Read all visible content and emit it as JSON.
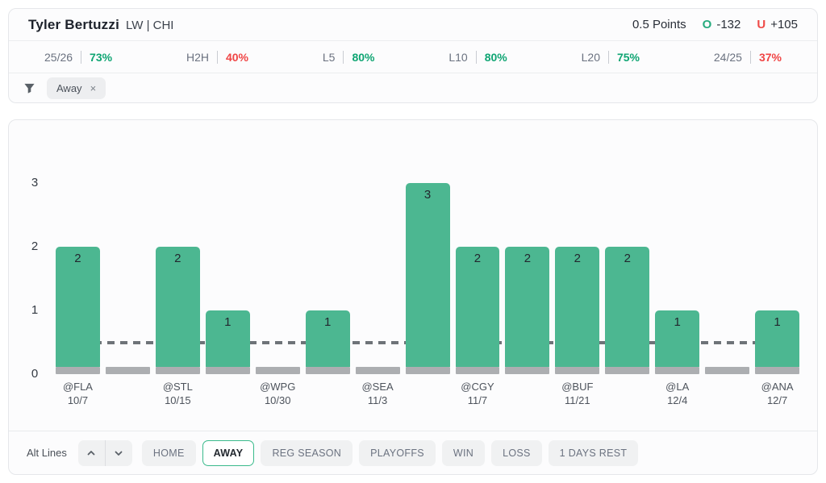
{
  "header": {
    "player": "Tyler Bertuzzi",
    "position_team": "LW | CHI",
    "line": "0.5 Points",
    "over_label": "O",
    "over_odds": "-132",
    "under_label": "U",
    "under_odds": "+105"
  },
  "stats": [
    {
      "label": "25/26",
      "value": "73%",
      "status": "green"
    },
    {
      "label": "H2H",
      "value": "40%",
      "status": "red"
    },
    {
      "label": "L5",
      "value": "80%",
      "status": "green"
    },
    {
      "label": "L10",
      "value": "80%",
      "status": "green"
    },
    {
      "label": "L20",
      "value": "75%",
      "status": "green"
    },
    {
      "label": "24/25",
      "value": "37%",
      "status": "red"
    }
  ],
  "filter_bar": {
    "chips": [
      {
        "label": "Away",
        "close_icon": "×"
      }
    ]
  },
  "chart_data": {
    "type": "bar",
    "title": "",
    "xlabel": "",
    "ylabel": "",
    "yticks": [
      0,
      1,
      2,
      3
    ],
    "ylim": [
      0,
      3.5
    ],
    "prop_line": 0.5,
    "grid": false,
    "bar_color": "#4cb791",
    "zero_bar_color": "#acaeb1",
    "games": [
      {
        "opponent": "@FLA",
        "date": "10/7",
        "points": 2
      },
      {
        "opponent": "",
        "date": "",
        "points": 0
      },
      {
        "opponent": "@STL",
        "date": "10/15",
        "points": 2
      },
      {
        "opponent": "",
        "date": "",
        "points": 1
      },
      {
        "opponent": "@WPG",
        "date": "10/30",
        "points": 0
      },
      {
        "opponent": "",
        "date": "",
        "points": 1
      },
      {
        "opponent": "@SEA",
        "date": "11/3",
        "points": 0
      },
      {
        "opponent": "",
        "date": "",
        "points": 3
      },
      {
        "opponent": "@CGY",
        "date": "11/7",
        "points": 2
      },
      {
        "opponent": "",
        "date": "",
        "points": 2
      },
      {
        "opponent": "@BUF",
        "date": "11/21",
        "points": 2
      },
      {
        "opponent": "",
        "date": "",
        "points": 2
      },
      {
        "opponent": "@LA",
        "date": "12/4",
        "points": 1
      },
      {
        "opponent": "",
        "date": "",
        "points": 0
      },
      {
        "opponent": "@ANA",
        "date": "12/7",
        "points": 1
      }
    ]
  },
  "controls": {
    "alt_lines_label": "Alt Lines",
    "buttons": [
      {
        "label": "HOME",
        "active": false
      },
      {
        "label": "AWAY",
        "active": true
      },
      {
        "label": "REG SEASON",
        "active": false
      },
      {
        "label": "PLAYOFFS",
        "active": false
      },
      {
        "label": "WIN",
        "active": false
      },
      {
        "label": "LOSS",
        "active": false
      },
      {
        "label": "1 DAYS REST",
        "active": false
      }
    ]
  },
  "colors": {
    "green": "#0fa573",
    "red": "#f04545",
    "over_icon": "#27ab7e",
    "under_icon": "#ef4b48",
    "bar": "#4cb791",
    "bar_zero": "#acaeb1",
    "prop_dash": "#6e7378",
    "active_border": "#3aba8c"
  }
}
